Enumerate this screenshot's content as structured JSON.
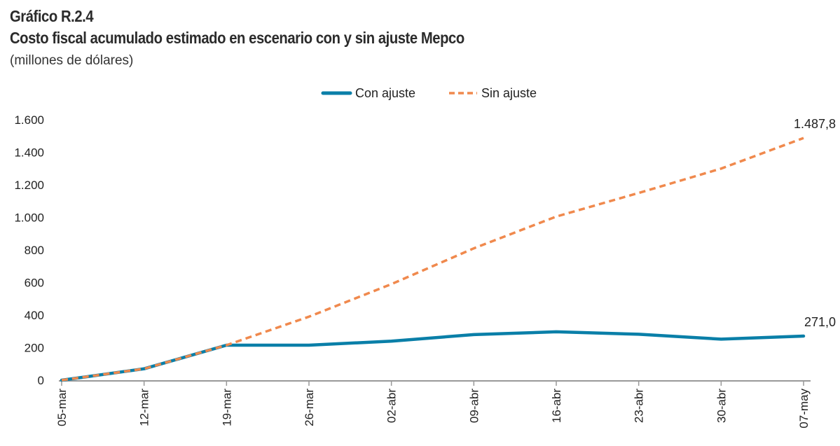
{
  "header": {
    "figure_label": "Gráfico R.2.4",
    "title": "Costo fiscal acumulado estimado en escenario con y sin ajuste Mepco",
    "subtitle": "(millones de dólares)"
  },
  "colors": {
    "con_ajuste": "#0a7fa8",
    "sin_ajuste": "#f0894d",
    "axis": "#999999"
  },
  "chart_data": {
    "type": "line",
    "title": "Costo fiscal acumulado estimado en escenario con y sin ajuste Mepco",
    "ylabel": "(millones de dólares)",
    "xlabel": "",
    "categories": [
      "05-mar",
      "12-mar",
      "19-mar",
      "26-mar",
      "02-abr",
      "09-abr",
      "16-abr",
      "23-abr",
      "30-abr",
      "07-may"
    ],
    "series": [
      {
        "name": "Con ajuste",
        "style": "solid",
        "values": [
          0,
          70,
          215,
          215,
          240,
          280,
          297,
          282,
          252,
          271.0
        ]
      },
      {
        "name": "Sin ajuste",
        "style": "dashed",
        "values": [
          0,
          70,
          215,
          390,
          590,
          810,
          1005,
          1150,
          1300,
          1487.8
        ]
      }
    ],
    "ylim": [
      0,
      1600
    ],
    "yticks": [
      0,
      200,
      400,
      600,
      800,
      1000,
      1200,
      1400,
      1600
    ],
    "ytick_labels": [
      "0",
      "200",
      "400",
      "600",
      "800",
      "1.000",
      "1.200",
      "1.400",
      "1.600"
    ],
    "annotations": [
      {
        "series": "Sin ajuste",
        "label": "1.487,8"
      },
      {
        "series": "Con ajuste",
        "label": "271,0"
      }
    ],
    "legend": {
      "position": "top-center",
      "entries": [
        "Con ajuste",
        "Sin ajuste"
      ]
    },
    "grid": false
  }
}
